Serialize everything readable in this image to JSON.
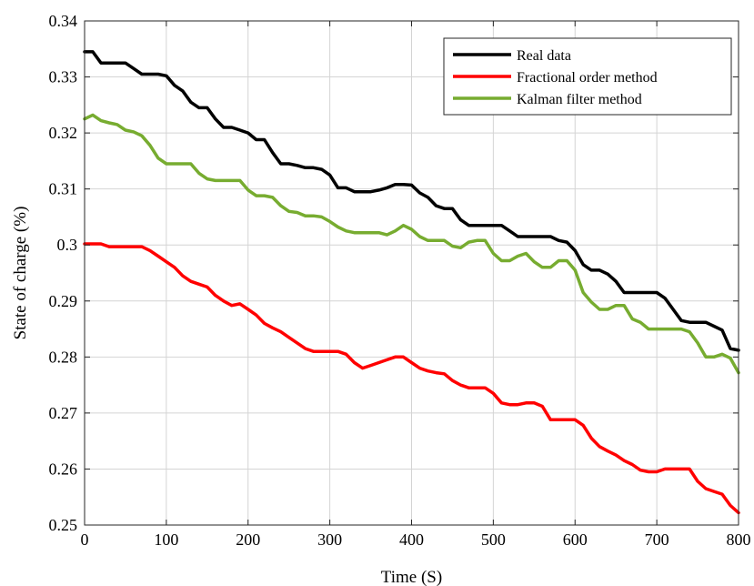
{
  "chart_data": {
    "type": "line",
    "xlabel": "Time (S)",
    "ylabel": "State of charge (%)",
    "xlim": [
      0,
      800
    ],
    "ylim": [
      0.25,
      0.34
    ],
    "xticks": [
      0,
      100,
      200,
      300,
      400,
      500,
      600,
      700,
      800
    ],
    "yticks": [
      0.25,
      0.26,
      0.27,
      0.28,
      0.29,
      0.3,
      0.31,
      0.32,
      0.33,
      0.34
    ],
    "xtick_labels": [
      "0",
      "100",
      "200",
      "300",
      "400",
      "500",
      "600",
      "700",
      "800"
    ],
    "ytick_labels": [
      "0.25",
      "0.26",
      "0.27",
      "0.28",
      "0.29",
      "0.3",
      "0.31",
      "0.32",
      "0.33",
      "0.34"
    ],
    "grid": true,
    "legend_position": "top-right",
    "series": [
      {
        "name": "Real data",
        "color": "#000000",
        "x": [
          0,
          10,
          20,
          30,
          50,
          60,
          70,
          80,
          90,
          100,
          110,
          120,
          130,
          140,
          150,
          160,
          170,
          180,
          190,
          200,
          210,
          220,
          230,
          240,
          250,
          260,
          270,
          280,
          290,
          300,
          310,
          320,
          330,
          340,
          350,
          360,
          370,
          380,
          390,
          400,
          410,
          420,
          430,
          440,
          450,
          460,
          470,
          480,
          490,
          500,
          510,
          520,
          530,
          540,
          550,
          560,
          570,
          580,
          590,
          600,
          610,
          620,
          630,
          640,
          650,
          660,
          670,
          680,
          690,
          700,
          710,
          720,
          730,
          740,
          750,
          760,
          770,
          780,
          790,
          800
        ],
        "values": [
          0.3345,
          0.3345,
          0.3325,
          0.3325,
          0.3325,
          0.3315,
          0.3305,
          0.3305,
          0.3305,
          0.3302,
          0.3285,
          0.3275,
          0.3255,
          0.3245,
          0.3245,
          0.3225,
          0.321,
          0.321,
          0.3205,
          0.32,
          0.3188,
          0.3188,
          0.3165,
          0.3145,
          0.3145,
          0.3142,
          0.3138,
          0.3138,
          0.3135,
          0.3125,
          0.3102,
          0.3102,
          0.3095,
          0.3095,
          0.3095,
          0.3098,
          0.3102,
          0.3108,
          0.3108,
          0.3107,
          0.3093,
          0.3085,
          0.307,
          0.3065,
          0.3065,
          0.3045,
          0.3035,
          0.3035,
          0.3035,
          0.3035,
          0.3035,
          0.3025,
          0.3015,
          0.3015,
          0.3015,
          0.3015,
          0.3015,
          0.3008,
          0.3005,
          0.299,
          0.2965,
          0.2955,
          0.2955,
          0.2948,
          0.2935,
          0.2915,
          0.2915,
          0.2915,
          0.2915,
          0.2915,
          0.2905,
          0.2885,
          0.2865,
          0.2862,
          0.2862,
          0.2862,
          0.2855,
          0.2848,
          0.2815,
          0.2812
        ]
      },
      {
        "name": "Fractional order method",
        "color": "#ff0000",
        "x": [
          0,
          10,
          20,
          30,
          40,
          50,
          60,
          70,
          80,
          90,
          100,
          110,
          120,
          130,
          140,
          150,
          160,
          170,
          180,
          190,
          200,
          210,
          220,
          230,
          240,
          250,
          260,
          270,
          280,
          290,
          300,
          310,
          320,
          330,
          340,
          350,
          360,
          370,
          380,
          390,
          400,
          410,
          420,
          430,
          440,
          450,
          460,
          470,
          480,
          490,
          500,
          510,
          520,
          530,
          540,
          550,
          560,
          570,
          580,
          590,
          600,
          610,
          620,
          630,
          640,
          650,
          660,
          670,
          680,
          690,
          700,
          710,
          720,
          730,
          740,
          750,
          760,
          770,
          780,
          790,
          800
        ],
        "values": [
          0.3002,
          0.3002,
          0.3002,
          0.2997,
          0.2997,
          0.2997,
          0.2997,
          0.2997,
          0.299,
          0.298,
          0.297,
          0.296,
          0.2945,
          0.2935,
          0.293,
          0.2925,
          0.291,
          0.29,
          0.2892,
          0.2895,
          0.2885,
          0.2875,
          0.286,
          0.2852,
          0.2845,
          0.2835,
          0.2825,
          0.2815,
          0.281,
          0.281,
          0.281,
          0.281,
          0.2805,
          0.279,
          0.278,
          0.2785,
          0.279,
          0.2795,
          0.28,
          0.28,
          0.279,
          0.278,
          0.2775,
          0.2772,
          0.277,
          0.2758,
          0.275,
          0.2745,
          0.2745,
          0.2745,
          0.2735,
          0.2718,
          0.2715,
          0.2715,
          0.2718,
          0.2718,
          0.2712,
          0.2688,
          0.2688,
          0.2688,
          0.2688,
          0.2678,
          0.2655,
          0.264,
          0.2632,
          0.2625,
          0.2615,
          0.2608,
          0.2598,
          0.2595,
          0.2595,
          0.26,
          0.26,
          0.26,
          0.26,
          0.2578,
          0.2565,
          0.256,
          0.2555,
          0.2535,
          0.2522
        ]
      },
      {
        "name": "Kalman filter method",
        "color": "#77ac30",
        "x": [
          0,
          10,
          20,
          30,
          40,
          50,
          60,
          70,
          80,
          90,
          100,
          110,
          120,
          130,
          140,
          150,
          160,
          170,
          180,
          190,
          200,
          210,
          220,
          230,
          240,
          250,
          260,
          270,
          280,
          290,
          300,
          310,
          320,
          330,
          340,
          350,
          360,
          370,
          380,
          390,
          400,
          410,
          420,
          430,
          440,
          450,
          460,
          470,
          480,
          490,
          500,
          510,
          520,
          530,
          540,
          550,
          560,
          570,
          580,
          590,
          600,
          610,
          620,
          630,
          640,
          650,
          660,
          670,
          680,
          690,
          700,
          710,
          720,
          730,
          740,
          750,
          760,
          770,
          780,
          790,
          800
        ],
        "values": [
          0.3225,
          0.3232,
          0.3222,
          0.3218,
          0.3215,
          0.3205,
          0.3202,
          0.3195,
          0.3178,
          0.3155,
          0.3145,
          0.3145,
          0.3145,
          0.3145,
          0.3128,
          0.3118,
          0.3115,
          0.3115,
          0.3115,
          0.3115,
          0.3098,
          0.3088,
          0.3088,
          0.3085,
          0.307,
          0.306,
          0.3058,
          0.3052,
          0.3052,
          0.305,
          0.3042,
          0.3032,
          0.3025,
          0.3022,
          0.3022,
          0.3022,
          0.3022,
          0.3018,
          0.3025,
          0.3035,
          0.3028,
          0.3015,
          0.3008,
          0.3008,
          0.3008,
          0.2998,
          0.2995,
          0.3005,
          0.3008,
          0.3008,
          0.2985,
          0.2972,
          0.2972,
          0.298,
          0.2985,
          0.297,
          0.296,
          0.296,
          0.2972,
          0.2972,
          0.2955,
          0.2915,
          0.2898,
          0.2885,
          0.2885,
          0.2892,
          0.2892,
          0.2868,
          0.2862,
          0.285,
          0.285,
          0.285,
          0.285,
          0.285,
          0.2845,
          0.2825,
          0.28,
          0.28,
          0.2805,
          0.2798,
          0.2772
        ]
      }
    ]
  }
}
